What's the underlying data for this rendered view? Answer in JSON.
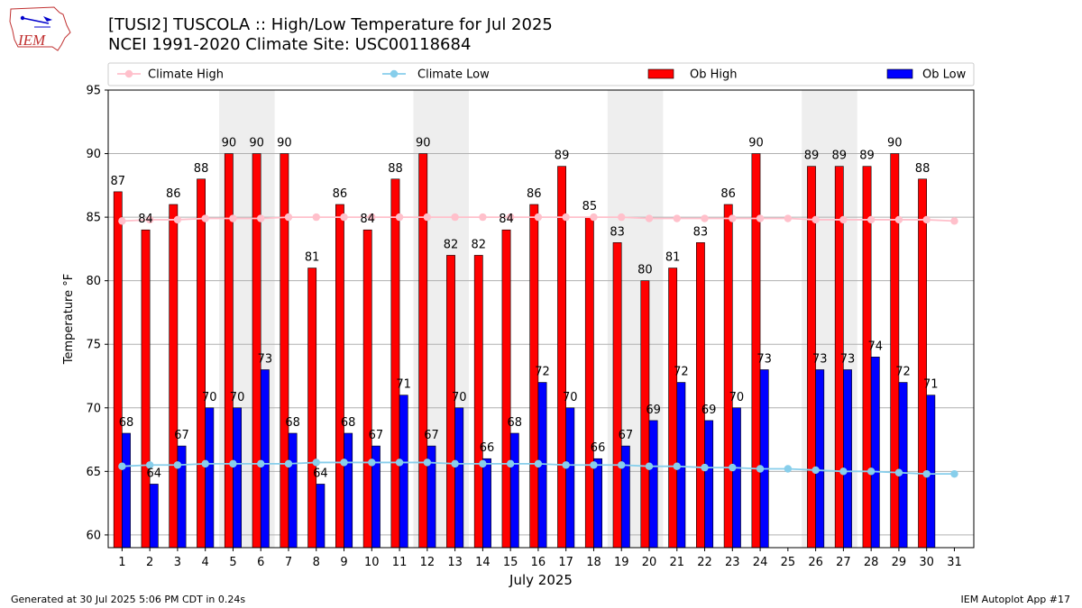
{
  "logo_text": "IEM",
  "title_line1": "[TUSI2] TUSCOLA :: High/Low Temperature for Jul 2025",
  "title_line2": "NCEI 1991-2020 Climate Site: USC00118684",
  "footer_left": "Generated at 30 Jul 2025 5:06 PM CDT in 0.24s",
  "footer_right": "IEM Autoplot App #17",
  "colors": {
    "ob_high": "#ff0000",
    "ob_low": "#0000ff",
    "climate_high": "#ffc0cb",
    "climate_low": "#87ceeb",
    "weekend_shade": "#eeeeee",
    "grid": "#b0b0b0"
  },
  "chart_data": {
    "type": "bar",
    "xlabel": "July 2025",
    "ylabel": "Temperature °F",
    "ylim": [
      59,
      95
    ],
    "yticks": [
      60,
      65,
      70,
      75,
      80,
      85,
      90,
      95
    ],
    "grid": "horizontal",
    "legend_placement": "top",
    "categories": [
      "1",
      "2",
      "3",
      "4",
      "5",
      "6",
      "7",
      "8",
      "9",
      "10",
      "11",
      "12",
      "13",
      "14",
      "15",
      "16",
      "17",
      "18",
      "19",
      "20",
      "21",
      "22",
      "23",
      "24",
      "25",
      "26",
      "27",
      "28",
      "29",
      "30",
      "31"
    ],
    "shaded_weekend_days": [
      [
        5,
        6
      ],
      [
        12,
        13
      ],
      [
        19,
        20
      ],
      [
        26,
        27
      ]
    ],
    "series": [
      {
        "name": "Ob High",
        "kind": "bar",
        "values": [
          87,
          84,
          86,
          88,
          90,
          90,
          90,
          81,
          86,
          84,
          88,
          90,
          82,
          82,
          84,
          86,
          89,
          85,
          83,
          80,
          81,
          83,
          86,
          90,
          null,
          89,
          89,
          89,
          90,
          88,
          null
        ]
      },
      {
        "name": "Ob Low",
        "kind": "bar",
        "values": [
          68,
          64,
          67,
          70,
          70,
          73,
          68,
          64,
          68,
          67,
          71,
          67,
          70,
          66,
          68,
          72,
          70,
          66,
          67,
          69,
          72,
          69,
          70,
          73,
          null,
          73,
          73,
          74,
          72,
          71,
          null
        ]
      },
      {
        "name": "Climate High",
        "kind": "line",
        "values": [
          84.7,
          84.8,
          84.8,
          84.9,
          84.9,
          84.9,
          85.0,
          85.0,
          85.0,
          85.0,
          85.0,
          85.0,
          85.0,
          85.0,
          85.0,
          85.0,
          85.0,
          85.0,
          85.0,
          84.9,
          84.9,
          84.9,
          84.9,
          84.9,
          84.9,
          84.8,
          84.8,
          84.8,
          84.8,
          84.8,
          84.7
        ]
      },
      {
        "name": "Climate Low",
        "kind": "line",
        "values": [
          65.4,
          65.5,
          65.5,
          65.6,
          65.6,
          65.6,
          65.6,
          65.7,
          65.7,
          65.7,
          65.7,
          65.7,
          65.6,
          65.6,
          65.6,
          65.6,
          65.5,
          65.5,
          65.5,
          65.4,
          65.4,
          65.3,
          65.3,
          65.2,
          65.2,
          65.1,
          65.0,
          65.0,
          64.9,
          64.8,
          64.8
        ]
      }
    ]
  }
}
